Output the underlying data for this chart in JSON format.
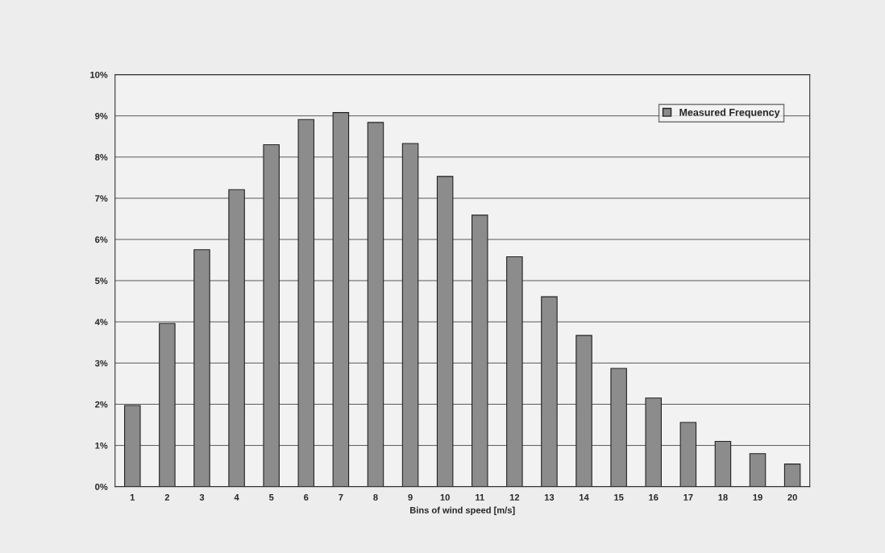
{
  "chart_data": {
    "type": "bar",
    "xlabel": "Bins of wind speed [m/s]",
    "categories": [
      "1",
      "2",
      "3",
      "4",
      "5",
      "6",
      "7",
      "8",
      "9",
      "10",
      "11",
      "12",
      "13",
      "14",
      "15",
      "16",
      "17",
      "18",
      "19",
      "20"
    ],
    "series": [
      {
        "name": "Measured Frequency",
        "color": "#8c8c8c",
        "values": [
          1.97,
          3.96,
          5.75,
          7.21,
          8.3,
          8.91,
          9.08,
          8.84,
          8.33,
          7.53,
          6.59,
          5.58,
          4.61,
          3.67,
          2.87,
          2.15,
          1.56,
          1.1,
          0.8,
          0.55
        ]
      }
    ],
    "ylim": [
      0,
      10
    ],
    "yticks": [
      {
        "value": 0,
        "label": "0%"
      },
      {
        "value": 1,
        "label": "1%"
      },
      {
        "value": 2,
        "label": "2%"
      },
      {
        "value": 3,
        "label": "3%"
      },
      {
        "value": 4,
        "label": "4%"
      },
      {
        "value": 5,
        "label": "5%"
      },
      {
        "value": 6,
        "label": "6%"
      },
      {
        "value": 7,
        "label": "7%"
      },
      {
        "value": 8,
        "label": "8%"
      },
      {
        "value": 9,
        "label": "9%"
      },
      {
        "value": 10,
        "label": "10%"
      }
    ],
    "grid": "y",
    "legend": "top right"
  }
}
